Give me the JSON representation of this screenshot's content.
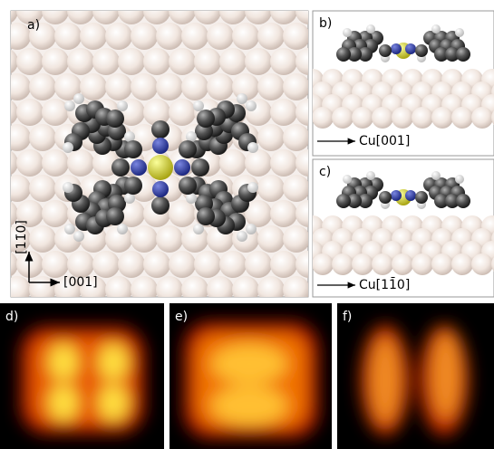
{
  "panels": [
    {
      "label": "a)"
    },
    {
      "label": "b)",
      "caption": "Cu[001]"
    },
    {
      "label": "c)",
      "caption": "Cu[11̄0]"
    },
    {
      "label": "d)"
    },
    {
      "label": "e)"
    },
    {
      "label": "f)"
    }
  ],
  "axes": {
    "vertical": "[11̄0]",
    "horizontal": "[001]"
  }
}
